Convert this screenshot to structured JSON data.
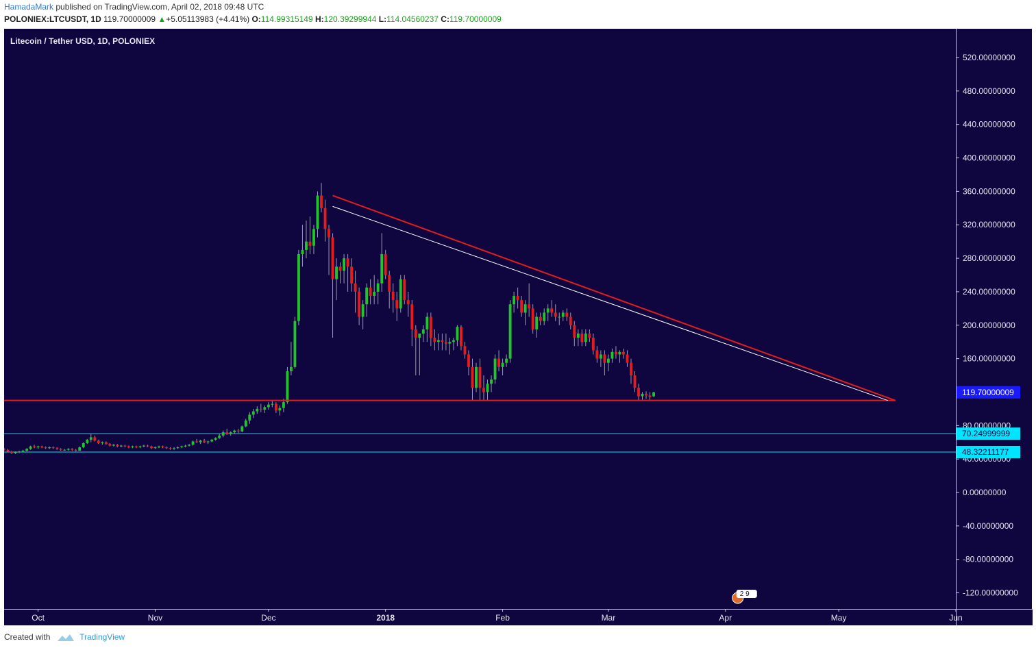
{
  "header": {
    "author": "HamadaMark",
    "published": " published on TradingView.com, April 02, 2018 09:48 UTC"
  },
  "quote": {
    "symbol": "POLONIEX:LTCUSDT, 1D",
    "price": "119.70000009",
    "change": "+5.05113983 (+4.41%)",
    "o_label": "O:",
    "o_value": "114.99315149",
    "h_label": "H:",
    "h_value": "120.39299944",
    "l_label": "L:",
    "l_value": "114.04560237",
    "c_label": "C:",
    "c_value": "119.70000009",
    "green": "#1aa31a"
  },
  "chart_data": {
    "type": "candlestick",
    "title": "Litecoin / Tether USD, 1D, POLONIEX",
    "y_ticks": [
      "520.00000000",
      "480.00000000",
      "440.00000000",
      "400.00000000",
      "360.00000000",
      "320.00000000",
      "280.00000000",
      "240.00000000",
      "200.00000000",
      "160.00000000",
      "80.00000000",
      "40.00000000",
      "0.00000000",
      "-40.00000000",
      "-80.00000000",
      "-120.00000000"
    ],
    "ylim": [
      -140,
      540
    ],
    "x_ticks": [
      {
        "label": "Oct",
        "date": "2017-10-01"
      },
      {
        "label": "Nov",
        "date": "2017-11-01"
      },
      {
        "label": "Dec",
        "date": "2017-12-01"
      },
      {
        "label": "2018",
        "date": "2018-01-01"
      },
      {
        "label": "Feb",
        "date": "2018-02-01"
      },
      {
        "label": "Mar",
        "date": "2018-03-01"
      },
      {
        "label": "Apr",
        "date": "2018-04-01"
      },
      {
        "label": "May",
        "date": "2018-05-01"
      },
      {
        "label": "Jun",
        "date": "2018-06-01"
      }
    ],
    "x_range": [
      "2017-09-22",
      "2018-06-01"
    ],
    "last_price": {
      "value": 119.70000009,
      "label": "119.70000009",
      "color": "#1a1aff"
    },
    "levels": [
      {
        "value": 70.24999999,
        "label": "70.24999999",
        "color": "#00e5ff"
      },
      {
        "value": 48.32211177,
        "label": "48.32211177",
        "color": "#00e5ff"
      }
    ],
    "support_line": {
      "value": 110,
      "from": "2017-09-22",
      "to": "2018-05-16",
      "color": "#e31c1c"
    },
    "resistance_line": {
      "from": {
        "date": "2017-12-18",
        "value": 355
      },
      "to": {
        "date": "2018-05-16",
        "value": 110
      },
      "color": "#e31c1c"
    },
    "inner_line": {
      "from": {
        "date": "2017-12-18",
        "value": 342
      },
      "to": {
        "date": "2018-05-14",
        "value": 110
      },
      "color": "#ffffff"
    },
    "up_color": "#21c52b",
    "down_color": "#e31c1c",
    "start_date": "2017-09-22",
    "ohlc": [
      [
        52,
        53,
        50,
        51
      ],
      [
        51,
        52,
        48,
        49
      ],
      [
        49,
        50,
        46,
        47
      ],
      [
        47,
        49,
        46,
        48
      ],
      [
        48,
        50,
        47,
        49
      ],
      [
        49,
        51,
        48,
        50
      ],
      [
        50,
        53,
        49,
        52
      ],
      [
        52,
        56,
        51,
        55
      ],
      [
        55,
        57,
        53,
        54
      ],
      [
        54,
        56,
        52,
        55
      ],
      [
        55,
        56,
        53,
        54
      ],
      [
        54,
        55,
        52,
        53
      ],
      [
        53,
        55,
        52,
        54
      ],
      [
        54,
        55,
        52,
        53
      ],
      [
        53,
        54,
        51,
        52
      ],
      [
        52,
        53,
        50,
        51
      ],
      [
        51,
        52,
        50,
        51
      ],
      [
        51,
        53,
        50,
        52
      ],
      [
        52,
        53,
        50,
        51
      ],
      [
        51,
        52,
        49,
        50
      ],
      [
        50,
        55,
        50,
        54
      ],
      [
        54,
        60,
        53,
        59
      ],
      [
        59,
        64,
        58,
        63
      ],
      [
        63,
        70,
        60,
        66
      ],
      [
        66,
        68,
        61,
        62
      ],
      [
        62,
        63,
        58,
        59
      ],
      [
        59,
        61,
        57,
        60
      ],
      [
        60,
        61,
        57,
        58
      ],
      [
        58,
        59,
        55,
        56
      ],
      [
        56,
        58,
        55,
        57
      ],
      [
        57,
        58,
        54,
        55
      ],
      [
        55,
        57,
        54,
        56
      ],
      [
        56,
        57,
        54,
        55
      ],
      [
        55,
        56,
        53,
        54
      ],
      [
        54,
        56,
        53,
        55
      ],
      [
        55,
        56,
        53,
        54
      ],
      [
        54,
        56,
        53,
        55
      ],
      [
        55,
        57,
        54,
        56
      ],
      [
        56,
        57,
        54,
        55
      ],
      [
        55,
        56,
        52,
        53
      ],
      [
        53,
        55,
        52,
        54
      ],
      [
        54,
        56,
        53,
        55
      ],
      [
        55,
        56,
        53,
        54
      ],
      [
        54,
        55,
        52,
        53
      ],
      [
        53,
        54,
        51,
        52
      ],
      [
        52,
        54,
        51,
        53
      ],
      [
        53,
        55,
        52,
        54
      ],
      [
        54,
        56,
        53,
        55
      ],
      [
        55,
        57,
        54,
        56
      ],
      [
        56,
        58,
        55,
        57
      ],
      [
        57,
        62,
        56,
        61
      ],
      [
        61,
        64,
        59,
        60
      ],
      [
        60,
        63,
        58,
        62
      ],
      [
        62,
        64,
        59,
        60
      ],
      [
        60,
        62,
        58,
        61
      ],
      [
        61,
        64,
        60,
        63
      ],
      [
        63,
        66,
        62,
        65
      ],
      [
        65,
        70,
        64,
        68
      ],
      [
        68,
        74,
        66,
        72
      ],
      [
        72,
        76,
        69,
        70
      ],
      [
        70,
        73,
        68,
        72
      ],
      [
        72,
        75,
        70,
        74
      ],
      [
        74,
        76,
        71,
        73
      ],
      [
        73,
        80,
        72,
        79
      ],
      [
        79,
        88,
        78,
        86
      ],
      [
        86,
        96,
        82,
        93
      ],
      [
        93,
        100,
        89,
        97
      ],
      [
        97,
        103,
        94,
        100
      ],
      [
        100,
        106,
        96,
        99
      ],
      [
        99,
        104,
        95,
        102
      ],
      [
        102,
        108,
        99,
        105
      ],
      [
        105,
        110,
        102,
        106
      ],
      [
        106,
        108,
        95,
        98
      ],
      [
        98,
        104,
        92,
        101
      ],
      [
        101,
        112,
        96,
        108
      ],
      [
        108,
        150,
        106,
        145
      ],
      [
        145,
        180,
        140,
        150
      ],
      [
        150,
        210,
        148,
        205
      ],
      [
        205,
        290,
        200,
        285
      ],
      [
        285,
        320,
        270,
        290
      ],
      [
        290,
        325,
        280,
        300
      ],
      [
        300,
        330,
        285,
        295
      ],
      [
        295,
        320,
        285,
        315
      ],
      [
        315,
        360,
        305,
        355
      ],
      [
        355,
        370,
        335,
        340
      ],
      [
        340,
        350,
        300,
        315
      ],
      [
        315,
        320,
        260,
        305
      ],
      [
        305,
        310,
        185,
        255
      ],
      [
        255,
        280,
        230,
        270
      ],
      [
        270,
        275,
        250,
        265
      ],
      [
        265,
        285,
        250,
        280
      ],
      [
        280,
        285,
        240,
        270
      ],
      [
        270,
        280,
        240,
        250
      ],
      [
        250,
        265,
        215,
        240
      ],
      [
        240,
        245,
        200,
        210
      ],
      [
        210,
        230,
        195,
        225
      ],
      [
        225,
        250,
        210,
        245
      ],
      [
        245,
        255,
        225,
        235
      ],
      [
        235,
        260,
        225,
        240
      ],
      [
        240,
        255,
        225,
        250
      ],
      [
        250,
        310,
        240,
        285
      ],
      [
        285,
        290,
        255,
        260
      ],
      [
        260,
        265,
        220,
        240
      ],
      [
        240,
        250,
        215,
        230
      ],
      [
        230,
        240,
        205,
        220
      ],
      [
        220,
        260,
        215,
        255
      ],
      [
        255,
        260,
        225,
        230
      ],
      [
        230,
        240,
        210,
        225
      ],
      [
        225,
        230,
        175,
        195
      ],
      [
        195,
        200,
        140,
        185
      ],
      [
        185,
        190,
        140,
        190
      ],
      [
        190,
        200,
        180,
        195
      ],
      [
        195,
        215,
        180,
        210
      ],
      [
        210,
        215,
        175,
        185
      ],
      [
        185,
        195,
        170,
        180
      ],
      [
        180,
        190,
        170,
        182
      ],
      [
        182,
        190,
        170,
        180
      ],
      [
        180,
        190,
        170,
        178
      ],
      [
        178,
        185,
        165,
        180
      ],
      [
        180,
        185,
        170,
        182
      ],
      [
        182,
        200,
        175,
        198
      ],
      [
        198,
        200,
        170,
        175
      ],
      [
        175,
        180,
        160,
        165
      ],
      [
        165,
        170,
        140,
        150
      ],
      [
        150,
        160,
        110,
        125
      ],
      [
        125,
        155,
        120,
        150
      ],
      [
        150,
        160,
        110,
        125
      ],
      [
        125,
        140,
        110,
        120
      ],
      [
        120,
        135,
        110,
        130
      ],
      [
        130,
        140,
        120,
        135
      ],
      [
        135,
        165,
        130,
        160
      ],
      [
        160,
        170,
        145,
        150
      ],
      [
        150,
        160,
        140,
        155
      ],
      [
        155,
        165,
        150,
        160
      ],
      [
        160,
        230,
        155,
        225
      ],
      [
        225,
        240,
        215,
        235
      ],
      [
        235,
        245,
        220,
        230
      ],
      [
        230,
        235,
        210,
        215
      ],
      [
        215,
        230,
        200,
        225
      ],
      [
        225,
        250,
        210,
        220
      ],
      [
        220,
        225,
        190,
        195
      ],
      [
        195,
        215,
        185,
        210
      ],
      [
        210,
        215,
        200,
        205
      ],
      [
        205,
        220,
        200,
        215
      ],
      [
        215,
        225,
        205,
        220
      ],
      [
        220,
        230,
        210,
        215
      ],
      [
        215,
        225,
        205,
        210
      ],
      [
        210,
        215,
        200,
        210
      ],
      [
        210,
        218,
        205,
        215
      ],
      [
        215,
        220,
        205,
        210
      ],
      [
        210,
        215,
        195,
        200
      ],
      [
        200,
        205,
        175,
        185
      ],
      [
        185,
        195,
        175,
        190
      ],
      [
        190,
        195,
        175,
        180
      ],
      [
        180,
        195,
        175,
        190
      ],
      [
        190,
        195,
        180,
        185
      ],
      [
        185,
        190,
        165,
        170
      ],
      [
        170,
        175,
        155,
        160
      ],
      [
        160,
        170,
        150,
        165
      ],
      [
        165,
        170,
        140,
        155
      ],
      [
        155,
        165,
        145,
        160
      ],
      [
        160,
        172,
        155,
        168
      ],
      [
        168,
        175,
        160,
        165
      ],
      [
        165,
        170,
        155,
        168
      ],
      [
        168,
        172,
        160,
        165
      ],
      [
        165,
        170,
        150,
        155
      ],
      [
        155,
        160,
        130,
        140
      ],
      [
        140,
        145,
        120,
        125
      ],
      [
        125,
        130,
        110,
        115
      ],
      [
        115,
        120,
        111,
        118
      ],
      [
        118,
        121,
        112,
        116
      ],
      [
        116,
        120,
        111,
        114
      ],
      [
        114.99,
        120.39,
        114.05,
        119.7
      ]
    ]
  },
  "watermark": {
    "badge": "2 9"
  },
  "footer": {
    "created_with": "Created with",
    "brand": "TradingView"
  }
}
